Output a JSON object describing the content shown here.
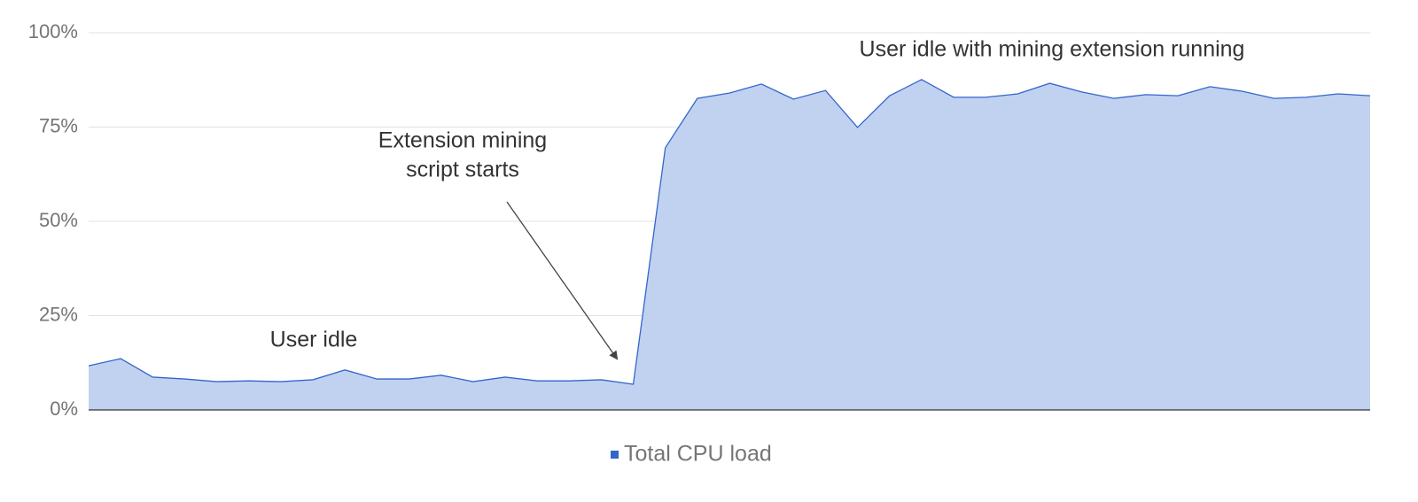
{
  "chart_data": {
    "type": "area",
    "series": [
      {
        "name": "Total CPU load",
        "color": "#3366cc",
        "fill": "#c1d1f0",
        "values": [
          11.7,
          13.6,
          8.7,
          8.2,
          7.5,
          7.7,
          7.5,
          8.0,
          10.6,
          8.2,
          8.2,
          9.2,
          7.5,
          8.7,
          7.7,
          7.7,
          8.0,
          6.8,
          69.5,
          82.6,
          84.0,
          86.4,
          82.4,
          84.7,
          74.9,
          83.3,
          87.6,
          82.9,
          82.9,
          83.8,
          86.6,
          84.3,
          82.6,
          83.6,
          83.3,
          85.7,
          84.5,
          82.6,
          82.9,
          83.8,
          83.3
        ]
      }
    ],
    "ylim": [
      0,
      100
    ],
    "yticks": [
      {
        "value": 0,
        "label": "0%"
      },
      {
        "value": 25,
        "label": "25%"
      },
      {
        "value": 50,
        "label": "50%"
      },
      {
        "value": 75,
        "label": "75%"
      },
      {
        "value": 100,
        "label": "100%"
      }
    ],
    "grid": true,
    "annotations": [
      {
        "lines": [
          "User idle"
        ]
      },
      {
        "lines": [
          "Extension mining",
          "script starts"
        ]
      },
      {
        "lines": [
          "User idle with mining extension running"
        ]
      }
    ]
  }
}
